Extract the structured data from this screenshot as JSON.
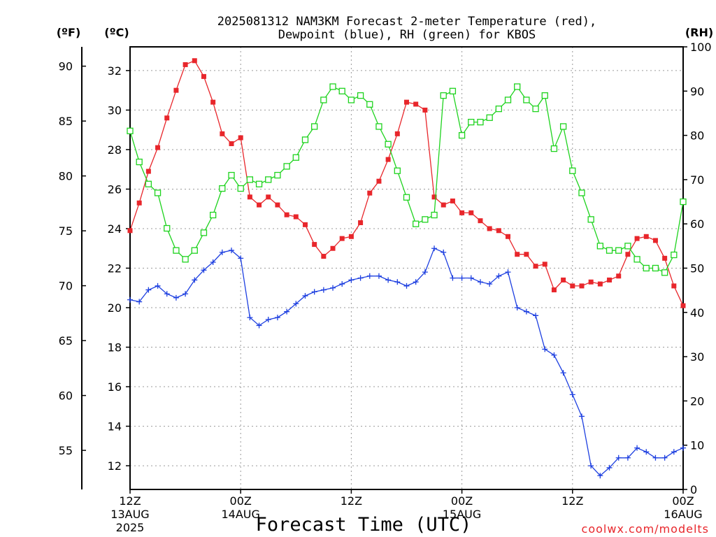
{
  "chart_data": {
    "type": "line",
    "title_line1": "2025081312 NAM3KM Forecast 2-meter Temperature (red),",
    "title_line2": "Dewpoint (blue), RH (green) for KBOS",
    "xlabel": "Forecast Time (UTC)",
    "credit": "coolwx.com/modelts",
    "unit_labels": {
      "fahrenheit": "(ºF)",
      "celsius": "(ºC)",
      "rh": "(RH)"
    },
    "x_range_hours": [
      0,
      60
    ],
    "y_celsius_range": [
      10.8,
      33.2
    ],
    "y_rh_range": [
      0,
      100
    ],
    "grid": true,
    "x_ticks": [
      {
        "hour": 0,
        "line1": "12Z",
        "line2": "13AUG",
        "line3": "2025"
      },
      {
        "hour": 12,
        "line1": "00Z",
        "line2": "14AUG",
        "line3": ""
      },
      {
        "hour": 24,
        "line1": "12Z",
        "line2": "",
        "line3": ""
      },
      {
        "hour": 36,
        "line1": "00Z",
        "line2": "15AUG",
        "line3": ""
      },
      {
        "hour": 48,
        "line1": "12Z",
        "line2": "",
        "line3": ""
      },
      {
        "hour": 60,
        "line1": "00Z",
        "line2": "16AUG",
        "line3": ""
      }
    ],
    "celsius_ticks": [
      "12",
      "14",
      "16",
      "18",
      "20",
      "22",
      "24",
      "26",
      "28",
      "30",
      "32"
    ],
    "fahrenheit_ticks": [
      "55",
      "60",
      "65",
      "70",
      "75",
      "80",
      "85",
      "90"
    ],
    "rh_ticks": [
      "0",
      "10",
      "20",
      "30",
      "40",
      "50",
      "60",
      "70",
      "80",
      "90",
      "100"
    ],
    "series": [
      {
        "key": "temperature",
        "color": "#e8262b",
        "marker": "filled-square",
        "units": "°C",
        "values": [
          23.9,
          25.3,
          26.9,
          28.1,
          29.6,
          31.0,
          32.3,
          32.5,
          31.7,
          30.4,
          28.8,
          28.3,
          28.6,
          25.6,
          25.2,
          25.6,
          25.2,
          24.7,
          24.6,
          24.2,
          23.2,
          22.6,
          23.0,
          23.5,
          23.6,
          24.3,
          25.8,
          26.4,
          27.5,
          28.8,
          30.4,
          30.3,
          30.0,
          25.6,
          25.2,
          25.4,
          24.8,
          24.8,
          24.4,
          24.0,
          23.9,
          23.6,
          22.7,
          22.7,
          22.1,
          22.2,
          20.9,
          21.4,
          21.1,
          21.1,
          21.3,
          21.2,
          21.4,
          21.6,
          22.7,
          23.5,
          23.6,
          23.4,
          22.5,
          21.1,
          20.1
        ]
      },
      {
        "key": "dewpoint",
        "color": "#1d3fe0",
        "marker": "plus",
        "units": "°C",
        "values": [
          20.4,
          20.3,
          20.9,
          21.1,
          20.7,
          20.5,
          20.7,
          21.4,
          21.9,
          22.3,
          22.8,
          22.9,
          22.5,
          19.5,
          19.1,
          19.4,
          19.5,
          19.8,
          20.2,
          20.6,
          20.8,
          20.9,
          21.0,
          21.2,
          21.4,
          21.5,
          21.6,
          21.6,
          21.4,
          21.3,
          21.1,
          21.3,
          21.8,
          23.0,
          22.8,
          21.5,
          21.5,
          21.5,
          21.3,
          21.2,
          21.6,
          21.8,
          20.0,
          19.8,
          19.6,
          17.9,
          17.6,
          16.7,
          15.6,
          14.5,
          12.0,
          11.5,
          11.9,
          12.4,
          12.4,
          12.9,
          12.7,
          12.4,
          12.4,
          12.7,
          12.9
        ]
      },
      {
        "key": "rh",
        "color": "#1ed31e",
        "marker": "open-square",
        "units": "%",
        "values": [
          81,
          74,
          69,
          67,
          59,
          54,
          52,
          54,
          58,
          62,
          68,
          71,
          68,
          70,
          69,
          70,
          71,
          73,
          75,
          79,
          82,
          88,
          91,
          90,
          88,
          89,
          87,
          82,
          78,
          72,
          66,
          60,
          61,
          62,
          89,
          90,
          80,
          83,
          83,
          84,
          86,
          88,
          91,
          88,
          86,
          89,
          77,
          82,
          72,
          67,
          61,
          55,
          54,
          54,
          55,
          52,
          50,
          50,
          49,
          53,
          65
        ]
      }
    ]
  }
}
